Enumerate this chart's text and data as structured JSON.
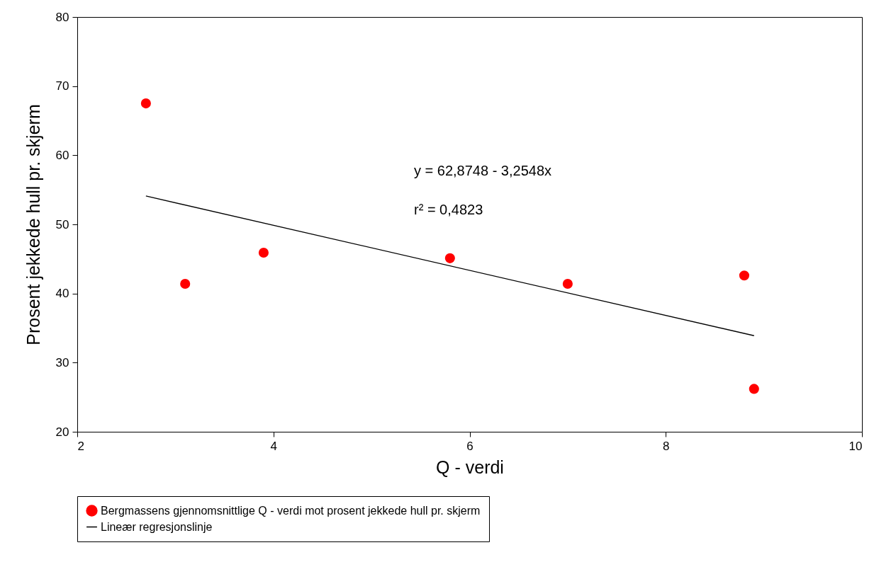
{
  "chart_data": {
    "type": "scatter",
    "xlabel": "Q - verdi",
    "ylabel": "Prosent jekkede hull pr. skjerm",
    "xlim": [
      2,
      10
    ],
    "xticks": [
      2,
      4,
      6,
      8,
      10
    ],
    "ylim": [
      20,
      80
    ],
    "yticks": [
      20,
      30,
      40,
      50,
      60,
      70,
      80
    ],
    "legend": "bottom",
    "annotations": [
      "y = 62,8748 - 3,2548x",
      "r² = 0,4823"
    ],
    "series": [
      {
        "name": "Bergmassens gjennomsnittlige Q - verdi mot prosent jekkede hull pr. skjerm",
        "marker": "circle",
        "color": "#ff0000",
        "x": [
          2.7,
          3.1,
          3.9,
          5.8,
          7.0,
          8.8,
          8.9
        ],
        "values": [
          67.5,
          41.4,
          45.9,
          45.1,
          41.4,
          42.6,
          26.2
        ]
      },
      {
        "name": "Lineær regresjonslinje",
        "type": "line",
        "color": "#000000",
        "line_style": "solid",
        "x": [
          2.7,
          8.9
        ],
        "values": [
          54.1,
          33.9
        ]
      }
    ]
  }
}
